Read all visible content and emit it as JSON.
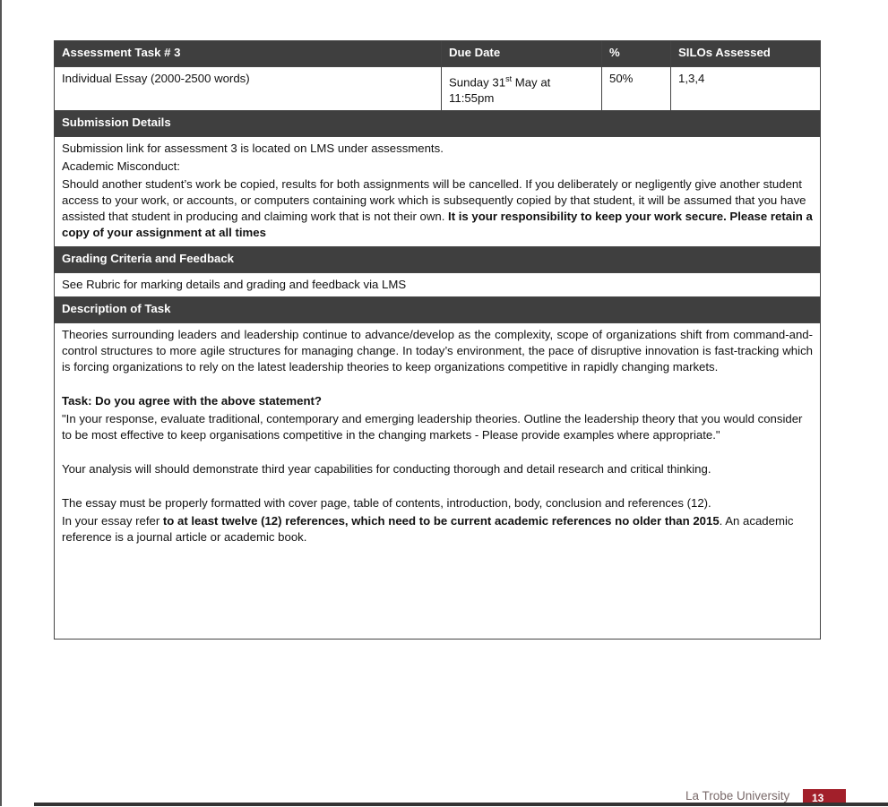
{
  "header": {
    "task": "Assessment Task # 3",
    "due": "Due Date",
    "pct": "%",
    "silos": "SILOs Assessed"
  },
  "row": {
    "task": "Individual Essay (2000-2500 words)",
    "due_a": "Sunday 31",
    "due_sup": "st",
    "due_b": " May at 11:55pm",
    "pct": "50%",
    "silos": "1,3,4"
  },
  "submission": {
    "title": "Submission Details",
    "line1": "Submission link for assessment 3 is located on LMS under assessments.",
    "line2": "Academic Misconduct:",
    "para": "Should another student’s work be copied, results for both assignments will be cancelled. If you deliberately or negligently give another student access to your work, or accounts, or computers containing work which is subsequently copied by that student, it will be assumed that you have assisted that student in producing and claiming work that is not their own. ",
    "para_bold": "It is your responsibility to keep your work secure. Please retain a copy of your assignment at all times"
  },
  "grading": {
    "title": "Grading Criteria and Feedback",
    "text": "See Rubric for marking details and grading and feedback via LMS"
  },
  "description": {
    "title": "Description of Task",
    "p1": "Theories surrounding leaders and leadership continue to advance/develop as the complexity, scope of organizations shift from command-and-control structures to more agile structures for managing change. In today’s environment, the pace of disruptive innovation is fast-tracking which is forcing organizations to rely on the latest leadership theories  to keep organizations competitive in rapidly changing markets.",
    "task": "Task: Do you agree with the above statement?",
    "quote": "\"In your response, evaluate traditional, contemporary and emerging leadership theories. Outline the leadership theory that you would consider to be most effective to keep organisations competitive in the changing markets - Please provide examples where appropriate.\"",
    "p3": "Your analysis will should demonstrate third year capabilities for conducting thorough and detail research and critical thinking.",
    "p4": "The essay must be properly formatted with cover page, table of contents, introduction, body, conclusion and references (12).",
    "p5a": "In your essay refer ",
    "p5b": "to at least twelve (12) references, which need to be current academic references no older than 2015",
    "p5c": ".  An academic reference is a journal article or academic book."
  },
  "footer": {
    "university": "La Trobe University",
    "page": "13"
  }
}
